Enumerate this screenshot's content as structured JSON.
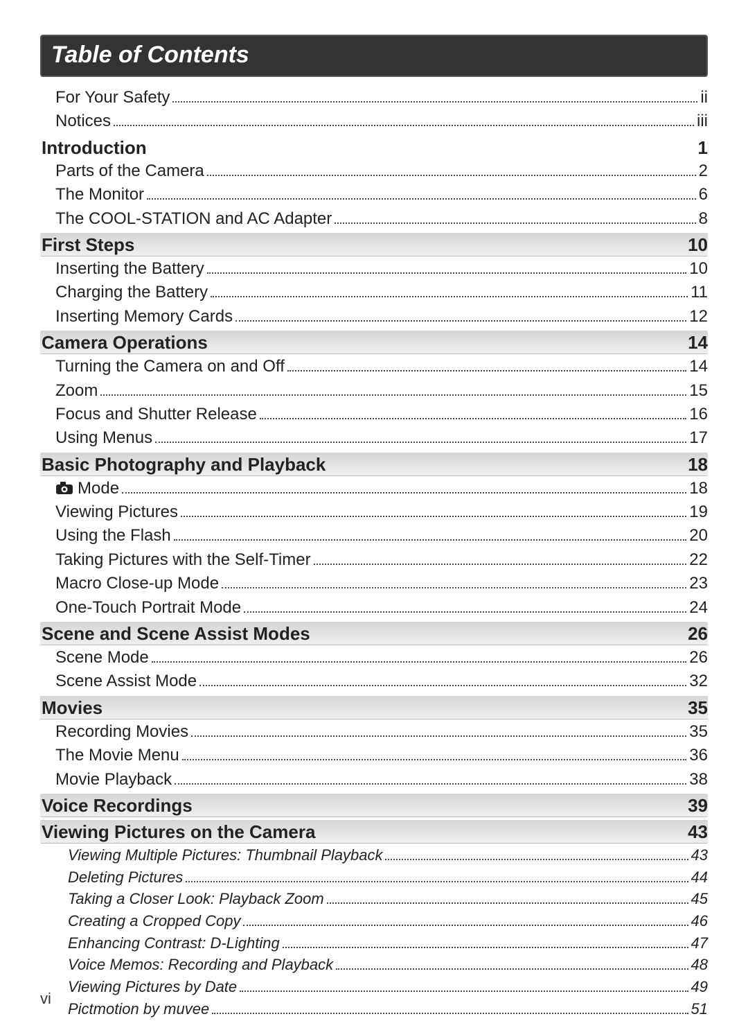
{
  "title": "Table of Contents",
  "page_number": "vi",
  "colors": {
    "title_bg": "#333333",
    "title_border": "#555555",
    "title_text": "#ffffff",
    "text": "#222222",
    "shade_top": "#d5d5d5",
    "shade_bottom": "#efefef",
    "shade_border": "#bbbbbb",
    "dot": "#444444",
    "page_bg": "#ffffff"
  },
  "typography": {
    "title_fontsize": 34,
    "section_fontsize": 26,
    "line_fontsize": 24,
    "italic_fontsize": 22,
    "title_italic": true,
    "font_family": "Segoe UI, Arial, sans-serif"
  },
  "pre_entries": [
    {
      "label": "For Your Safety",
      "page": "ii"
    },
    {
      "label": "Notices",
      "page": "iii"
    }
  ],
  "sections": [
    {
      "title": "Introduction",
      "page": "1",
      "shaded": false,
      "entries": [
        {
          "label": "Parts of the Camera",
          "page": "2"
        },
        {
          "label": "The Monitor",
          "page": "6"
        },
        {
          "label": "The COOL-STATION and AC Adapter",
          "page": "8"
        }
      ]
    },
    {
      "title": "First Steps",
      "page": "10",
      "shaded": true,
      "entries": [
        {
          "label": "Inserting the Battery",
          "page": "10"
        },
        {
          "label": "Charging the Battery",
          "page": "11"
        },
        {
          "label": "Inserting Memory Cards",
          "page": "12"
        }
      ]
    },
    {
      "title": "Camera Operations",
      "page": "14",
      "shaded": true,
      "entries": [
        {
          "label": "Turning the Camera on and Off",
          "page": "14"
        },
        {
          "label": "Zoom",
          "page": "15"
        },
        {
          "label": "Focus and Shutter Release",
          "page": "16"
        },
        {
          "label": "Using Menus",
          "page": "17"
        }
      ]
    },
    {
      "title": "Basic Photography and Playback",
      "page": "18",
      "shaded": true,
      "entries": [
        {
          "label": "Mode",
          "page": "18",
          "icon": "camera"
        },
        {
          "label": "Viewing Pictures",
          "page": "19"
        },
        {
          "label": "Using the Flash",
          "page": "20"
        },
        {
          "label": "Taking Pictures with the Self-Timer",
          "page": "22"
        },
        {
          "label": "Macro Close-up Mode",
          "page": "23"
        },
        {
          "label": "One-Touch Portrait Mode",
          "page": "24"
        }
      ]
    },
    {
      "title": "Scene and Scene Assist Modes",
      "page": "26",
      "shaded": true,
      "entries": [
        {
          "label": "Scene Mode",
          "page": "26"
        },
        {
          "label": "Scene Assist Mode",
          "page": "32"
        }
      ]
    },
    {
      "title": "Movies",
      "page": "35",
      "shaded": true,
      "entries": [
        {
          "label": "Recording Movies",
          "page": "35"
        },
        {
          "label": "The Movie Menu",
          "page": "36"
        },
        {
          "label": "Movie Playback",
          "page": "38"
        }
      ]
    },
    {
      "title": "Voice Recordings",
      "page": "39",
      "shaded": true,
      "entries": []
    },
    {
      "title": "Viewing Pictures on the Camera",
      "page": "43",
      "shaded": true,
      "entries": [],
      "italic_entries": [
        {
          "label": "Viewing Multiple Pictures: Thumbnail Playback",
          "page": "43"
        },
        {
          "label": "Deleting Pictures",
          "page": "44"
        },
        {
          "label": "Taking a Closer Look: Playback Zoom",
          "page": "45"
        },
        {
          "label": "Creating a Cropped Copy",
          "page": "46"
        },
        {
          "label": "Enhancing Contrast: D-Lighting",
          "page": "47"
        },
        {
          "label": "Voice Memos: Recording and Playback",
          "page": "48"
        },
        {
          "label": "Viewing Pictures by Date",
          "page": "49"
        },
        {
          "label": "Pictmotion by muvee",
          "page": "51"
        }
      ]
    }
  ]
}
